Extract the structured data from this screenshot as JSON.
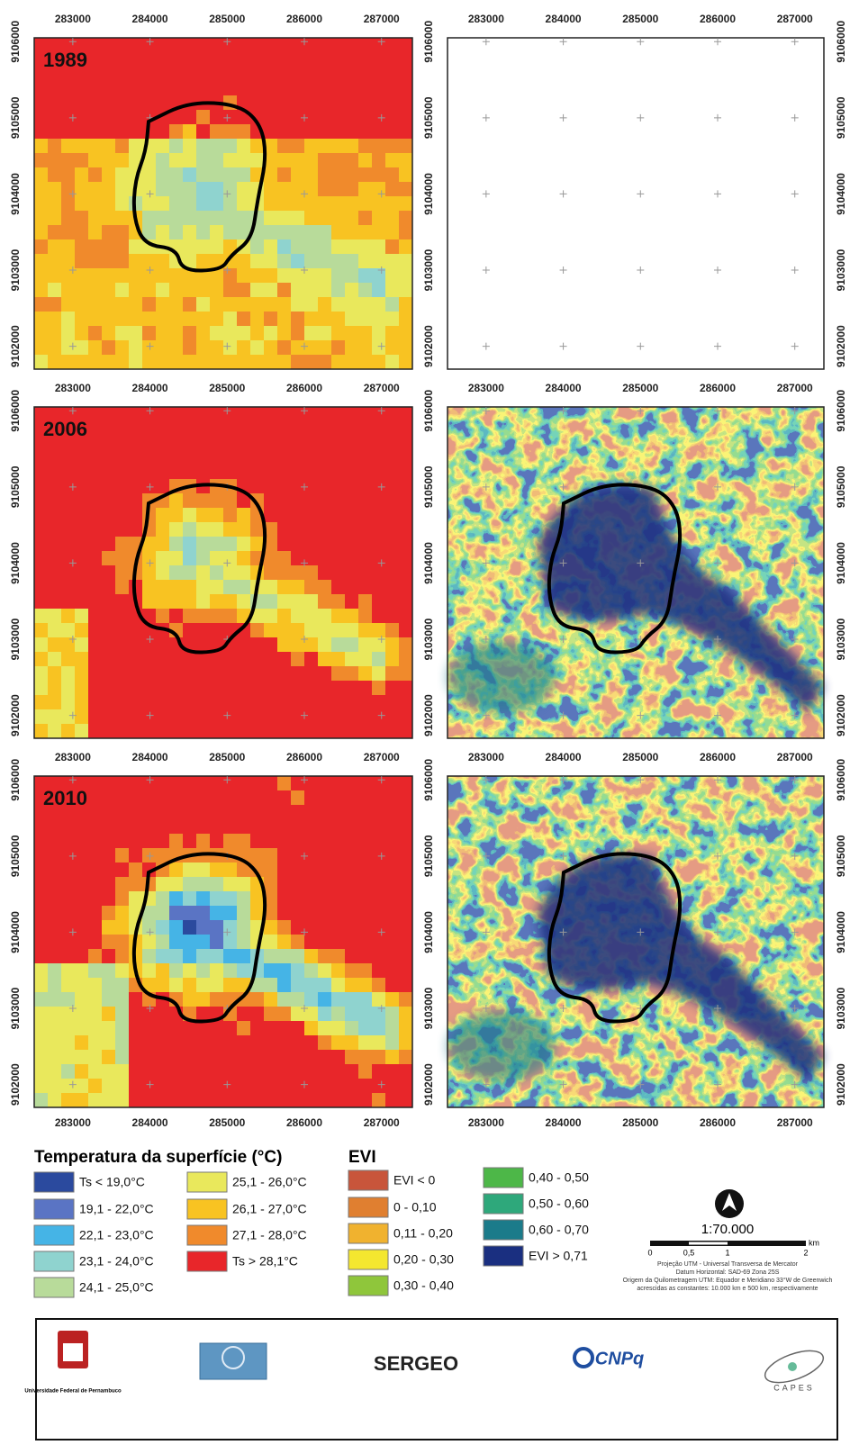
{
  "map": {
    "xticks": [
      283000,
      284000,
      285000,
      286000,
      287000
    ],
    "yticks": [
      9102000,
      9103000,
      9104000,
      9105000,
      9106000
    ],
    "xlim": [
      282500,
      287400
    ],
    "ylim": [
      9101700,
      9106050
    ]
  },
  "panels": [
    {
      "label": "1989"
    },
    {
      "label": "2006"
    },
    {
      "label": "2010"
    }
  ],
  "legend_temperature": {
    "title": "Temperatura da superfície (°C)",
    "items": [
      {
        "label": "Ts < 19,0°C",
        "color": "#2b4a9e"
      },
      {
        "label": "19,1 - 22,0°C",
        "color": "#5a74c4"
      },
      {
        "label": "22,1 - 23,0°C",
        "color": "#45b4e6"
      },
      {
        "label": "23,1 - 24,0°C",
        "color": "#8fd3cf"
      },
      {
        "label": "24,1 - 25,0°C",
        "color": "#b8db9a"
      },
      {
        "label": "25,1 - 26,0°C",
        "color": "#e9e85c"
      },
      {
        "label": "26,1 - 27,0°C",
        "color": "#f8c322"
      },
      {
        "label": "27,1 - 28,0°C",
        "color": "#f08a2c"
      },
      {
        "label": "Ts > 28,1°C",
        "color": "#e8262a"
      }
    ]
  },
  "legend_evi": {
    "title": "EVI",
    "items": [
      {
        "label": "EVI < 0",
        "color": "#c8553b"
      },
      {
        "label": "0 - 0,10",
        "color": "#e07f30"
      },
      {
        "label": "0,11 - 0,20",
        "color": "#f0b22f"
      },
      {
        "label": "0,20 - 0,30",
        "color": "#f4e72f"
      },
      {
        "label": "0,30 - 0,40",
        "color": "#8fc63b"
      },
      {
        "label": "0,40 - 0,50",
        "color": "#4db748"
      },
      {
        "label": "0,50 - 0,60",
        "color": "#2ea87b"
      },
      {
        "label": "0,60 - 0,70",
        "color": "#1b7b8a"
      },
      {
        "label": "EVI > 0,71",
        "color": "#1a2f80"
      }
    ]
  },
  "scale": {
    "ratio": "1:70.000",
    "ticks": [
      "0",
      "0,5",
      "1",
      "2"
    ],
    "unit": "km"
  },
  "projection": [
    "Projeção UTM - Universal Transversa de Mercator",
    "Datum Horizontal: SAD-69 Zona 25S",
    "Origem da Quilometragem UTM: Equador e Meridiano 33°W de Greenwich",
    "acrescidas as constantes: 10.000 km e 500 km, respectivamente"
  ],
  "logos": {
    "ufpe": "Universidade Federal de Pernambuco",
    "sergeo": "SERGEO",
    "cnpq": "CNPq",
    "capes": "CAPES"
  }
}
